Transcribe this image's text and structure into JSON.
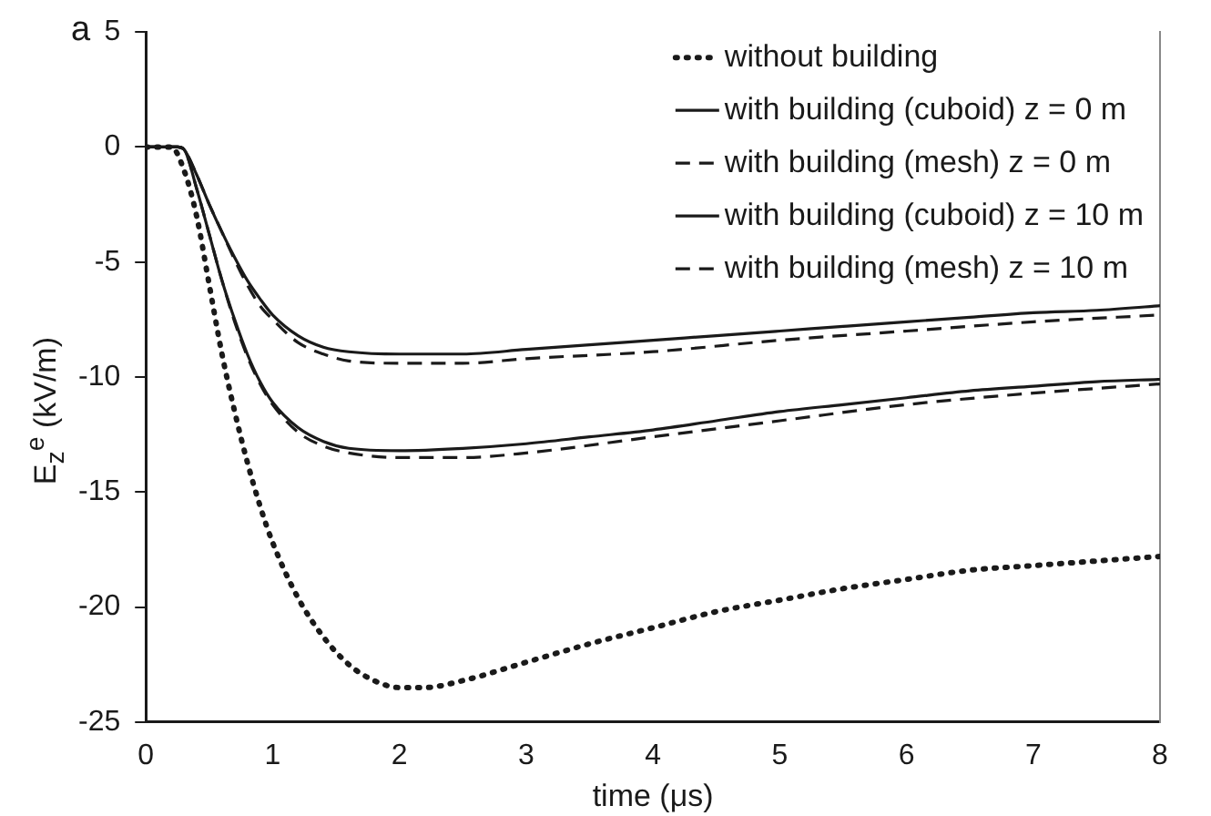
{
  "chart_data": {
    "type": "line",
    "xlabel": "time (μs)",
    "ylabel": "E$_{z}$$^{e}$ (kV/m)",
    "annotations": [
      "a"
    ],
    "xlim": [
      0,
      8
    ],
    "xticks": [
      0,
      1,
      2,
      3,
      4,
      5,
      6,
      7,
      8
    ],
    "ylim": [
      -25,
      5
    ],
    "yticks": [
      5,
      0,
      -5,
      -10,
      -15,
      -20,
      -25
    ],
    "grid": false,
    "legend": "top right",
    "marker": "none",
    "series": [
      {
        "name": "without building",
        "color": "#1a1a1a",
        "line_style": "dotted",
        "x": [
          0,
          0.2,
          0.3,
          0.4,
          0.5,
          0.6,
          0.7,
          0.8,
          0.9,
          1.0,
          1.2,
          1.4,
          1.6,
          1.8,
          2.0,
          2.2,
          2.5,
          3,
          3.5,
          4,
          4.5,
          5,
          5.5,
          6,
          6.5,
          7,
          7.5,
          8
        ],
        "values": [
          0,
          0,
          -1,
          -3,
          -6,
          -9,
          -11.5,
          -13.7,
          -15.6,
          -17.2,
          -19.6,
          -21.3,
          -22.5,
          -23.2,
          -23.5,
          -23.5,
          -23.2,
          -22.4,
          -21.6,
          -20.9,
          -20.2,
          -19.7,
          -19.2,
          -18.8,
          -18.4,
          -18.2,
          -18.0,
          -17.8
        ]
      },
      {
        "name": "with building (cuboid) z = 0 m",
        "color": "#1a1a1a",
        "line_style": "solid",
        "x": [
          0,
          0.25,
          0.3,
          0.4,
          0.5,
          0.6,
          0.7,
          0.8,
          0.9,
          1.0,
          1.2,
          1.4,
          1.6,
          2,
          2.5,
          3,
          3.5,
          4,
          4.5,
          5,
          5.5,
          6,
          6.5,
          7,
          7.5,
          8
        ],
        "values": [
          0,
          0,
          -0.1,
          -1.2,
          -2.5,
          -3.7,
          -4.8,
          -5.8,
          -6.6,
          -7.3,
          -8.2,
          -8.7,
          -8.9,
          -9.0,
          -9.0,
          -8.8,
          -8.6,
          -8.4,
          -8.2,
          -8.0,
          -7.8,
          -7.6,
          -7.4,
          -7.2,
          -7.1,
          -6.9
        ]
      },
      {
        "name": "with building (mesh) z = 0 m",
        "color": "#1a1a1a",
        "line_style": "dashed",
        "x": [
          0,
          0.25,
          0.3,
          0.4,
          0.5,
          0.6,
          0.7,
          0.8,
          0.9,
          1.0,
          1.2,
          1.4,
          1.6,
          2,
          2.5,
          3,
          4,
          5,
          6,
          7,
          8
        ],
        "values": [
          0,
          0,
          -0.1,
          -1.2,
          -2.5,
          -3.7,
          -4.9,
          -6.0,
          -6.9,
          -7.5,
          -8.5,
          -9.0,
          -9.3,
          -9.4,
          -9.4,
          -9.2,
          -8.9,
          -8.4,
          -8.0,
          -7.6,
          -7.3
        ]
      },
      {
        "name": "with building (cuboid) z = 10 m",
        "color": "#1a1a1a",
        "line_style": "solid",
        "x": [
          0,
          0.25,
          0.3,
          0.4,
          0.5,
          0.6,
          0.7,
          0.8,
          0.9,
          1.0,
          1.2,
          1.4,
          1.6,
          2,
          2.5,
          3,
          3.5,
          4,
          4.5,
          5,
          5.5,
          6,
          6.5,
          7,
          7.5,
          8
        ],
        "values": [
          0,
          0,
          -0.1,
          -1.8,
          -3.8,
          -5.8,
          -7.5,
          -9.0,
          -10.2,
          -11.1,
          -12.2,
          -12.8,
          -13.1,
          -13.2,
          -13.1,
          -12.9,
          -12.6,
          -12.3,
          -11.9,
          -11.5,
          -11.2,
          -10.9,
          -10.6,
          -10.4,
          -10.2,
          -10.1
        ]
      },
      {
        "name": "with building (mesh) z = 10 m",
        "color": "#1a1a1a",
        "line_style": "dashed",
        "x": [
          0,
          0.25,
          0.3,
          0.4,
          0.5,
          0.6,
          0.7,
          0.8,
          0.9,
          1.0,
          1.2,
          1.4,
          1.6,
          2,
          2.5,
          3,
          4,
          5,
          6,
          7,
          8
        ],
        "values": [
          0,
          0,
          -0.1,
          -1.8,
          -3.8,
          -5.8,
          -7.6,
          -9.1,
          -10.3,
          -11.2,
          -12.4,
          -13.0,
          -13.3,
          -13.5,
          -13.5,
          -13.3,
          -12.6,
          -11.9,
          -11.2,
          -10.7,
          -10.3
        ]
      }
    ]
  }
}
